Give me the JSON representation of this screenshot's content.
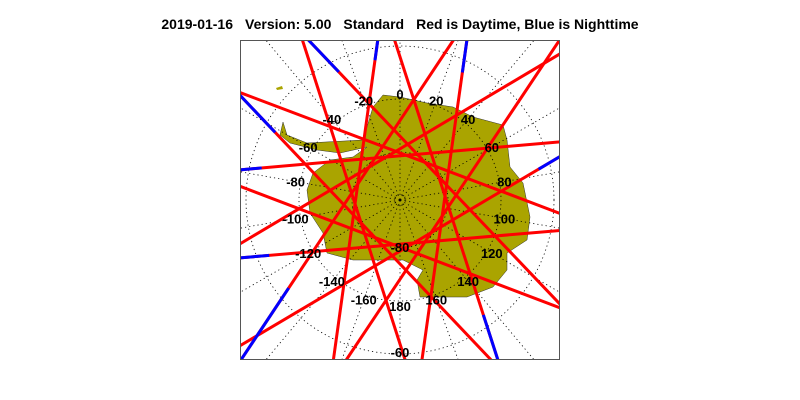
{
  "header": {
    "date": "2019-01-16",
    "version": "Version: 5.00",
    "product": "Standard",
    "legend_text": "Red is Daytime, Blue is Nighttime"
  },
  "map": {
    "projection": "south-polar-stereographic",
    "land_color": "#aaa400",
    "day_color": "#ff0000",
    "night_color": "#0000ff",
    "grid_style": "dotted",
    "longitude_labels": [
      "0",
      "20",
      "40",
      "60",
      "80",
      "100",
      "120",
      "140",
      "160",
      "180",
      "-160",
      "-140",
      "-120",
      "-100",
      "-80",
      "-60",
      "-40",
      "-20"
    ],
    "latitude_labels": [
      "-80",
      "-60"
    ]
  }
}
